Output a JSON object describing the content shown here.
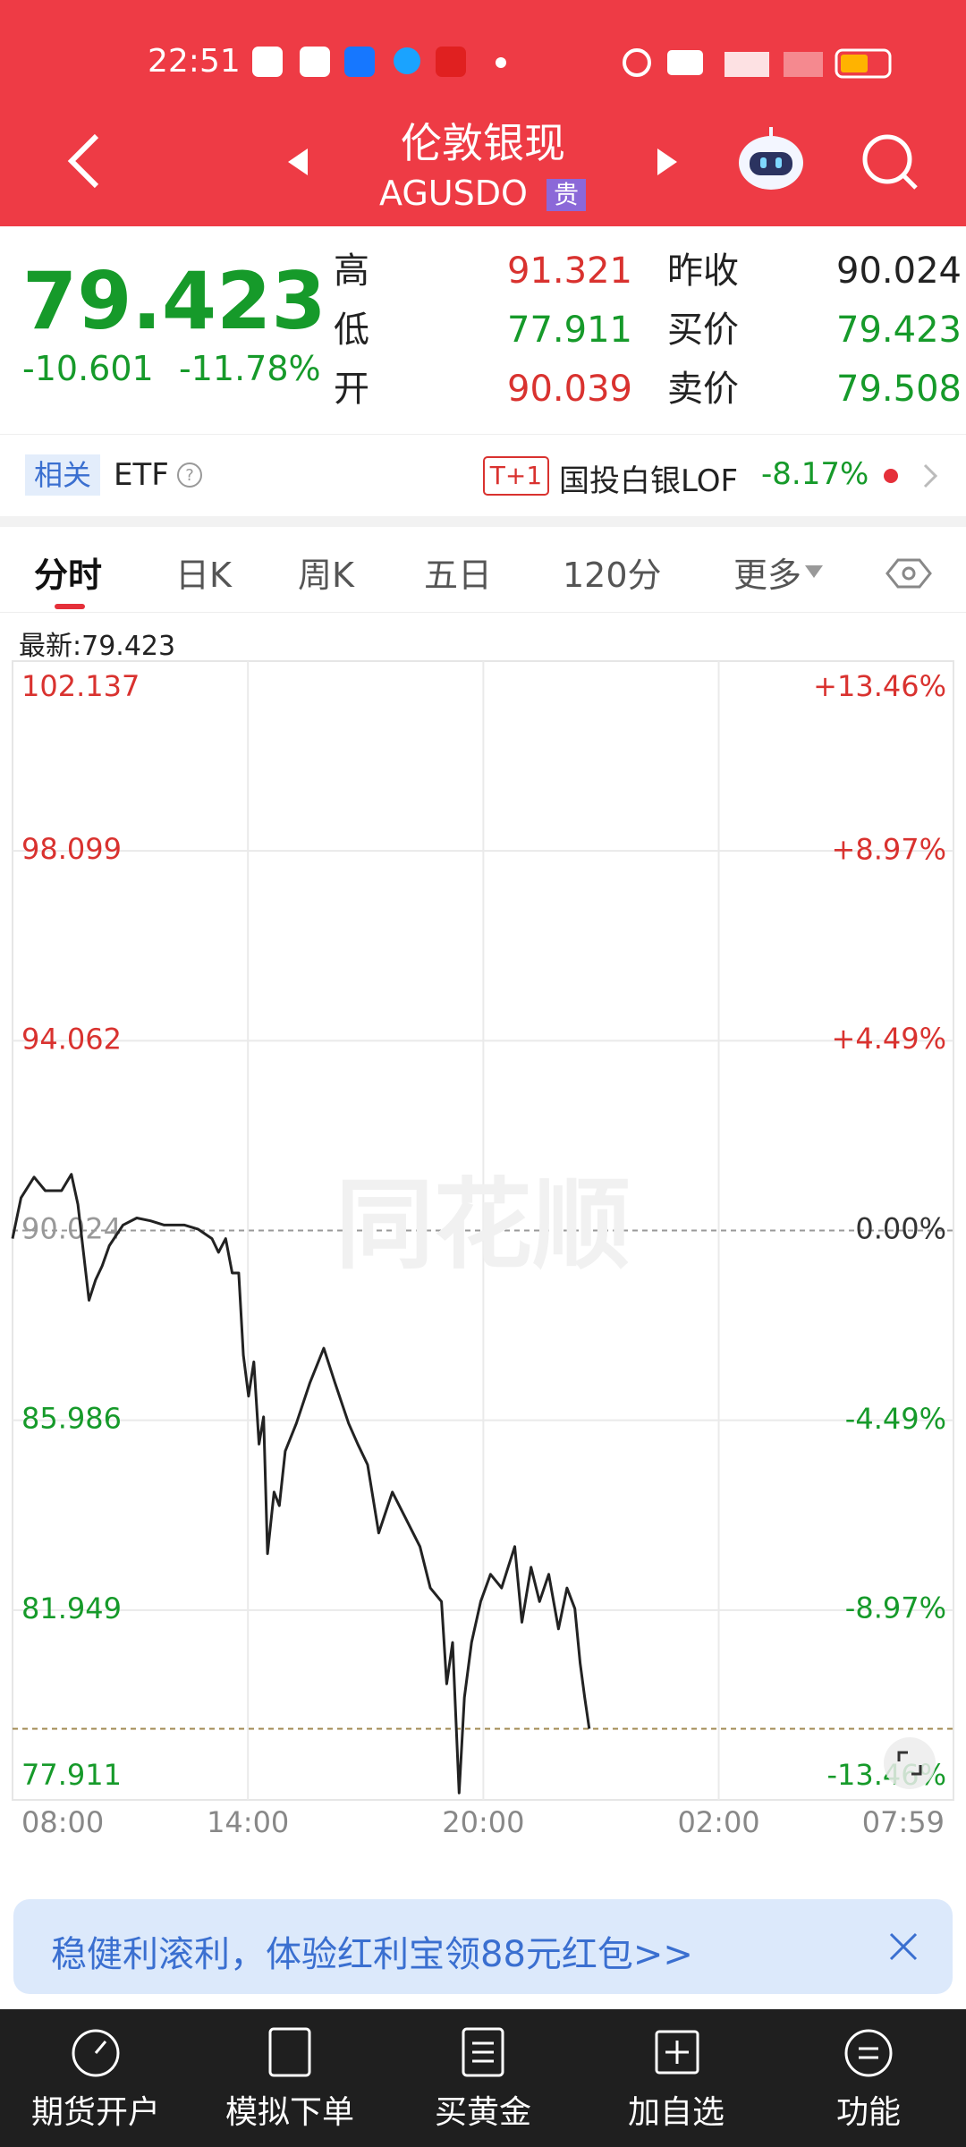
{
  "status_bar": {
    "time": "22:51"
  },
  "header": {
    "title": "伦敦银现",
    "code": "AGUSDO",
    "badge": "贵"
  },
  "quote": {
    "price": "79.423",
    "change": "-10.601",
    "change_pct": "-11.78%",
    "fields": [
      {
        "label": "高",
        "value": "91.321",
        "color": "#d9322f"
      },
      {
        "label": "低",
        "value": "77.911",
        "color": "#169a2a"
      },
      {
        "label": "开",
        "value": "90.039",
        "color": "#d9322f"
      },
      {
        "label": "昨收",
        "value": "90.024",
        "color": "#222222"
      },
      {
        "label": "买价",
        "value": "79.423",
        "color": "#169a2a"
      },
      {
        "label": "卖价",
        "value": "79.508",
        "color": "#169a2a"
      }
    ]
  },
  "etf": {
    "tag": "相关",
    "label": "ETF",
    "badge": "T+1",
    "name": "国投白银LOF",
    "change": "-8.17%"
  },
  "tabs": [
    "分时",
    "日K",
    "周K",
    "五日",
    "120分",
    "更多"
  ],
  "chart_data": {
    "type": "line",
    "latest_label": "最新:",
    "last_price": 79.423,
    "watermark": "同花顺",
    "x": [
      "08:00",
      "08:13",
      "08:33",
      "08:50",
      "09:15",
      "09:30",
      "09:40",
      "09:57",
      "10:07",
      "10:17",
      "10:28",
      "10:49",
      "11:10",
      "11:31",
      "11:52",
      "12:23",
      "12:44",
      "13:05",
      "13:15",
      "13:26",
      "13:36",
      "13:46",
      "13:53",
      "14:01",
      "14:09",
      "14:17",
      "14:24",
      "14:30",
      "14:40",
      "14:48",
      "14:57",
      "15:14",
      "15:35",
      "15:56",
      "16:13",
      "16:34",
      "16:48",
      "17:03",
      "17:20",
      "17:41",
      "18:02",
      "18:23",
      "18:39",
      "18:56",
      "19:04",
      "19:13",
      "19:23",
      "19:31",
      "19:42",
      "19:56",
      "20:11",
      "20:28",
      "20:38",
      "20:48",
      "20:59",
      "21:13",
      "21:26",
      "21:40",
      "21:55",
      "22:08",
      "22:20",
      "22:28",
      "22:35",
      "22:42"
    ],
    "series": [
      {
        "name": "伦敦银现",
        "color": "#222222",
        "values": [
          89.85,
          90.72,
          91.16,
          90.87,
          90.87,
          91.22,
          90.58,
          88.54,
          88.97,
          89.27,
          89.7,
          90.14,
          90.29,
          90.23,
          90.14,
          90.14,
          90.05,
          89.85,
          89.56,
          89.85,
          89.12,
          89.12,
          87.37,
          86.5,
          87.23,
          85.48,
          86.06,
          83.15,
          84.46,
          84.17,
          85.33,
          85.92,
          86.79,
          87.52,
          86.79,
          85.92,
          85.48,
          85.04,
          83.59,
          84.46,
          83.88,
          83.3,
          82.42,
          82.13,
          80.38,
          81.26,
          78.06,
          80.09,
          81.26,
          82.13,
          82.71,
          82.42,
          82.86,
          83.3,
          81.69,
          82.86,
          82.13,
          82.71,
          81.55,
          82.42,
          81.98,
          80.82,
          80.09,
          79.423
        ]
      }
    ],
    "ylim": [
      77.911,
      102.137
    ],
    "yticks": [
      102.137,
      98.099,
      94.062,
      90.024,
      85.986,
      81.949,
      77.911
    ],
    "y2lim": [
      -13.46,
      13.46
    ],
    "y2ticks": [
      {
        "value": 13.46,
        "label": "+13.46%"
      },
      {
        "value": 8.97,
        "label": "+8.97%"
      },
      {
        "value": 4.49,
        "label": "+4.49%"
      },
      {
        "value": 0,
        "label": "0.00%"
      },
      {
        "value": -4.49,
        "label": "-4.49%"
      },
      {
        "value": -8.97,
        "label": "-8.97%"
      },
      {
        "value": -13.46,
        "label": "-13.46%"
      }
    ],
    "xticks": [
      "08:00",
      "14:00",
      "20:00",
      "02:00",
      "07:59"
    ],
    "grid": true
  },
  "banner": {
    "text": "稳健利滚利，体验红利宝领88元红包>>"
  },
  "nav": [
    "期货开户",
    "模拟下单",
    "买黄金",
    "加自选",
    "功能"
  ]
}
